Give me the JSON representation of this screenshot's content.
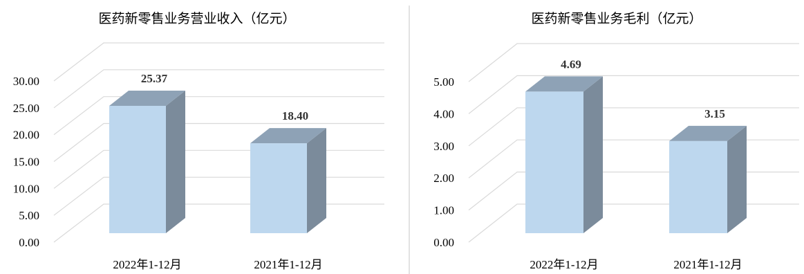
{
  "colors": {
    "bar_front": "#bdd7ee",
    "bar_top": "#8ea2b6",
    "bar_side": "#7b8b9b",
    "grid": "#d9d9d9",
    "divider": "#d9d9d9"
  },
  "chart_data": [
    {
      "type": "bar",
      "title": "医药新零售业务营业收入（亿元）",
      "categories": [
        "2022年1-12月",
        "2021年1-12月"
      ],
      "values": [
        25.37,
        18.4
      ],
      "value_labels": [
        "25.37",
        "18.40"
      ],
      "yticks": [
        "0.00",
        "5.00",
        "10.00",
        "15.00",
        "20.00",
        "25.00",
        "30.00"
      ],
      "ylim": [
        0,
        30
      ],
      "grid": true,
      "style": "3d-column"
    },
    {
      "type": "bar",
      "title": "医药新零售业务毛利（亿元）",
      "categories": [
        "2022年1-12月",
        "2021年1-12月"
      ],
      "values": [
        4.69,
        3.15
      ],
      "value_labels": [
        "4.69",
        "3.15"
      ],
      "yticks": [
        "0.00",
        "1.00",
        "2.00",
        "3.00",
        "4.00",
        "5.00"
      ],
      "ylim": [
        0,
        5
      ],
      "grid": true,
      "style": "3d-column"
    }
  ]
}
